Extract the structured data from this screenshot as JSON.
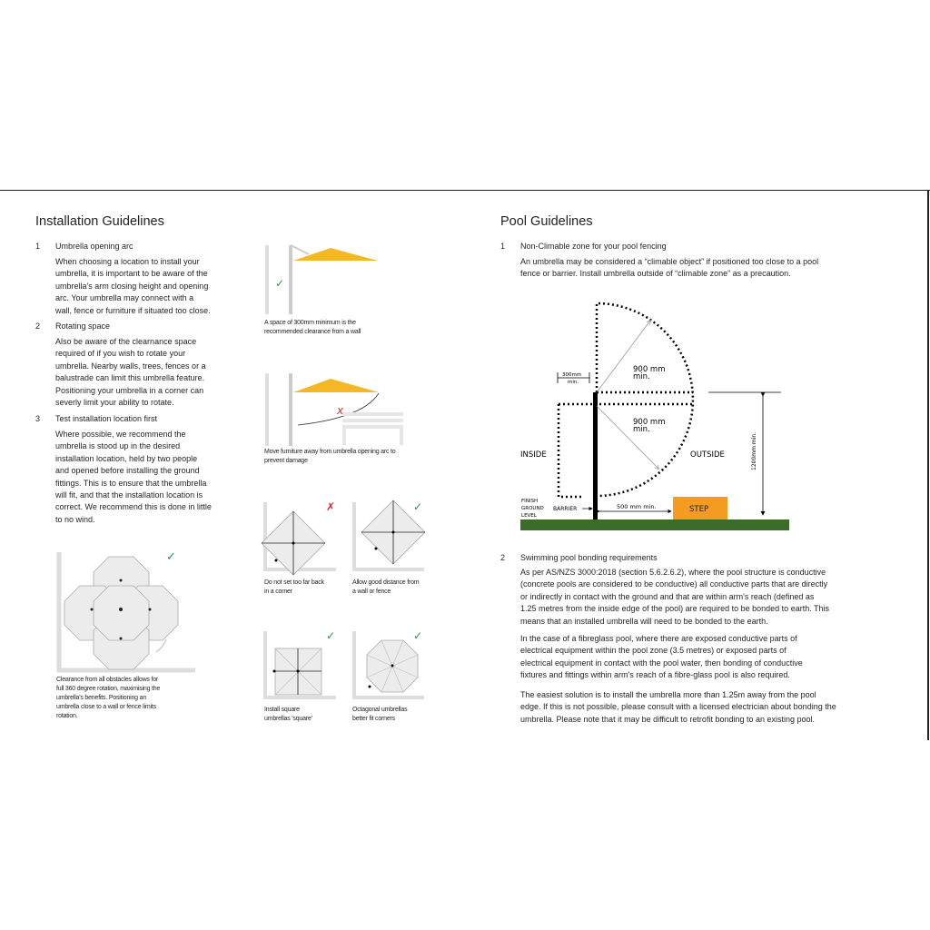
{
  "installation": {
    "title": "Installation Guidelines",
    "items": [
      {
        "num": "1",
        "heading": "Umbrella opening arc",
        "text": "When choosing a location to install your umbrella, it is important to be aware of the umbrella's arm closing height and opening arc. Your umbrella may connect with a wall, fence or furniture if situated too close."
      },
      {
        "num": "2",
        "heading": "Rotating space",
        "text": "Also be aware of the clearnance space required of if you wish to rotate your umbrella. Nearby walls, trees, fences or a balustrade can limit this umbrella feature. Positioning your umbrella in a corner can severly limit your ability to rotate."
      },
      {
        "num": "3",
        "heading": "Test installation location first",
        "text": "Where possible, we recommend the umbrella is stood up in the desired installation location, held by two people and opened before installing the ground fittings. This is to ensure that the umbrella will fit, and that the installation location is correct. We recommend this is done in little to no wind."
      }
    ],
    "rotation_caption": "Clearance from all obstacles allows for full 360 degree rotation, maximising the umbrella's benefits. Positioning an umbrella close to a wall or fence limits rotation.",
    "wall_caption": "A space of 300mm minimum is the recommended clearance from a wall",
    "furniture_caption": "Move furniture away from umbrella opening arc to prevent damage",
    "corner_captions": [
      "Do not set too far back in a corner",
      "Allow good distance from a wall or fence",
      "Install square umbrellas 'square'",
      "Octagonal umbrellas better fit corners"
    ]
  },
  "pool": {
    "title": "Pool Guidelines",
    "item1": {
      "num": "1",
      "heading": "Non-Climable zone for your pool fencing",
      "text": "An umbrella may be considered a “climable object” if positioned too close to a pool fence or barrier. Install umbrella outside of “climable zone” as a precaution."
    },
    "diagram": {
      "d900a": "900 mm",
      "d900b": "900 mm",
      "min": "min.",
      "d300": "300mm",
      "inside": "INSIDE",
      "outside": "OUTSIDE",
      "d1200": "1200mm min.",
      "finish1": "FINISH",
      "finish2": "GROUND",
      "finish3": "LEVEL",
      "barrier": "BARRIER",
      "d500": "500 mm min.",
      "step": "STEP"
    },
    "item2": {
      "num": "2",
      "heading": "Swimming pool bonding requirements",
      "paras": [
        "As per AS/NZS 3000:2018 (section 5.6.2.6.2), where the pool structure is conductive (concrete pools are considered to be conductive) all conductive parts that are directly or indirectly in contact with the ground and that are within arm's reach (defined as 1.25 metres from the inside edge of the pool) are required to be bonded to earth. This means that an installed umbrella will need to be bonded to the earth.",
        "In the case of a fibreglass pool, where there are exposed conductive parts of electrical equipment within the pool zone (3.5 metres) or exposed parts of electrical equipment in contact with the pool water, then bonding of conductive fixtures and fittings within arm's reach of a fibre-glass pool is also required.",
        "The easiest solution is to install the umbrella more than 1.25m away from the pool edge. If this is not possible, please consult with a licensed electrician about bonding the umbrella. Please note that it may be difficult to retrofit bonding to an existing pool."
      ]
    }
  },
  "colors": {
    "check": "#1a9b4b",
    "cross": "#e0262b",
    "canopy": "#f5b824",
    "ground": "#3d6b2a",
    "step": "#f39c1f"
  }
}
